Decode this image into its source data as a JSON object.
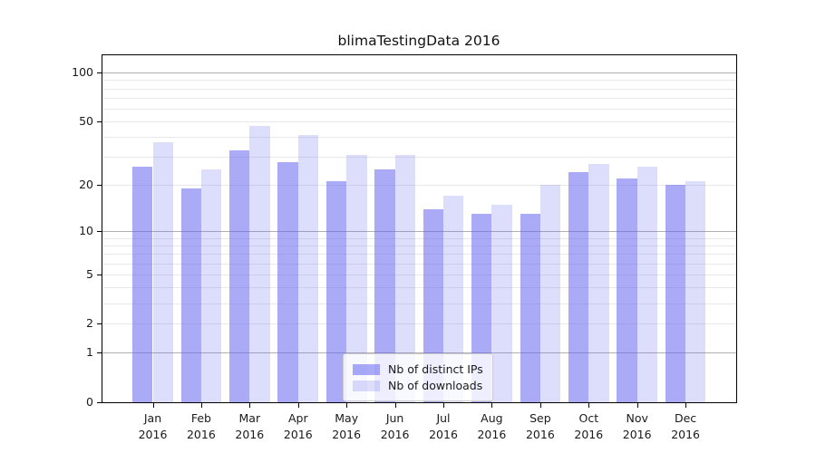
{
  "title": "blimaTestingData 2016",
  "chart_data": {
    "type": "bar",
    "title": "blimaTestingData 2016",
    "categories": [
      "Jan 2016",
      "Feb 2016",
      "Mar 2016",
      "Apr 2016",
      "May 2016",
      "Jun 2016",
      "Jul 2016",
      "Aug 2016",
      "Sep 2016",
      "Oct 2016",
      "Nov 2016",
      "Dec 2016"
    ],
    "series": [
      {
        "name": "Nb of distinct IPs",
        "color": "rgba(100,100,240,0.55)",
        "values": [
          26,
          19,
          33,
          28,
          21,
          25,
          14,
          13,
          13,
          24,
          22,
          20
        ]
      },
      {
        "name": "Nb of downloads",
        "color": "rgba(100,100,240,0.22)",
        "values": [
          37,
          25,
          47,
          41,
          31,
          31,
          17,
          15,
          20,
          27,
          26,
          21
        ]
      }
    ],
    "xlabel": "",
    "ylabel": "",
    "yscale": "log1p",
    "ylim": [
      0,
      125
    ],
    "yticks": [
      0,
      1,
      2,
      5,
      10,
      20,
      50,
      100
    ],
    "ytick_labels": [
      "0",
      "1",
      "2",
      "5",
      "10",
      "20",
      "50",
      "100"
    ],
    "major_gridlines": [
      1,
      10,
      100
    ],
    "minor_gridlines": [
      2,
      3,
      4,
      5,
      6,
      7,
      8,
      9,
      20,
      30,
      40,
      50,
      60,
      70,
      80,
      90
    ],
    "grid": true,
    "legend_position": "lower-center"
  },
  "colors": {
    "bar_dark": "rgba(100,100,240,0.55)",
    "bar_light": "rgba(100,100,240,0.22)",
    "grid_major": "#b0b0b0",
    "grid_minor": "#e8e8e8",
    "spine": "#000000",
    "text": "#1a1a1a",
    "legend_border": "#cccccc",
    "legend_bg": "rgba(255,255,255,0.8)"
  }
}
